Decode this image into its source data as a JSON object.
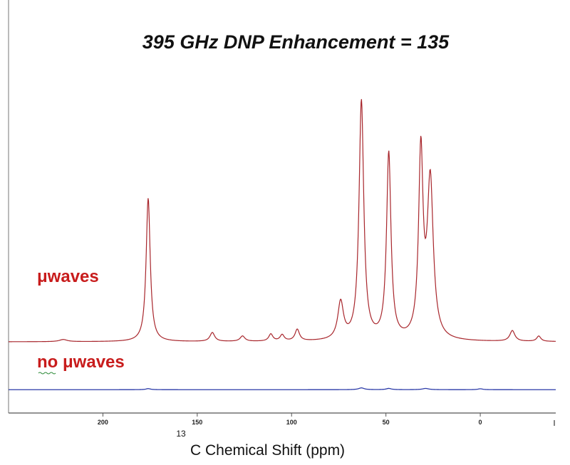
{
  "chart_data": {
    "type": "line",
    "title": "395 GHz DNP Enhancement = 135",
    "xlabel_superscript": "13",
    "xlabel": "C Chemical Shift (ppm)",
    "xlim": [
      250,
      -40
    ],
    "ylim": [
      -12,
      130
    ],
    "x_ticks": [
      "200",
      "150",
      "100",
      "50",
      "0"
    ],
    "grid": false,
    "colors": {
      "with_microwaves": "#a8262c",
      "without_microwaves": "#2b3aa8",
      "label_red": "#c81c1c",
      "axis": "#555555"
    },
    "series": [
      {
        "name": "μwaves",
        "baseline": 0,
        "peaks": [
          {
            "x": 221,
            "y": 1.2,
            "w": 2.5
          },
          {
            "x": 176,
            "y": 81,
            "w": 1.3
          },
          {
            "x": 142,
            "y": 5,
            "w": 1.5
          },
          {
            "x": 126,
            "y": 3,
            "w": 1.5
          },
          {
            "x": 111,
            "y": 4,
            "w": 1.3
          },
          {
            "x": 105,
            "y": 3.5,
            "w": 1.3
          },
          {
            "x": 97,
            "y": 6.5,
            "w": 1.4
          },
          {
            "x": 74,
            "y": 21,
            "w": 1.8
          },
          {
            "x": 63,
            "y": 135,
            "w": 1.5
          },
          {
            "x": 48.5,
            "y": 105,
            "w": 1.4
          },
          {
            "x": 31.5,
            "y": 104,
            "w": 1.4
          },
          {
            "x": 26.5,
            "y": 89,
            "w": 1.9
          },
          {
            "x": -17,
            "y": 6,
            "w": 1.6
          },
          {
            "x": -31,
            "y": 3,
            "w": 1.3
          }
        ]
      },
      {
        "name": "no μwaves",
        "baseline": -27,
        "peaks": [
          {
            "x": 176,
            "y": 0.6,
            "w": 1.5
          },
          {
            "x": 63,
            "y": 1,
            "w": 1.8
          },
          {
            "x": 48.5,
            "y": 0.7,
            "w": 1.6
          },
          {
            "x": 29,
            "y": 0.7,
            "w": 2
          },
          {
            "x": 0,
            "y": 0.5,
            "w": 1.5
          }
        ]
      }
    ]
  }
}
